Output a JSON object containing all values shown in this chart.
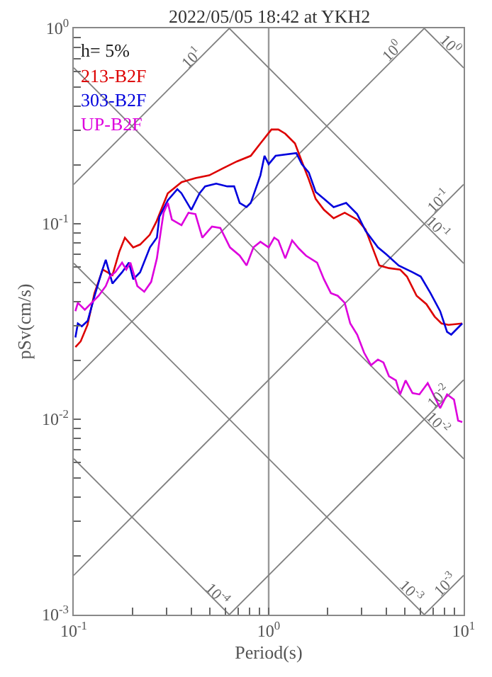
{
  "chart_data": {
    "type": "line",
    "title": "2022/05/05 18:42 at YKH2",
    "xlabel": "Period(s)",
    "ylabel": "pSv(cm/s)",
    "log": "xy",
    "grid": true,
    "legend": "top left",
    "marker": "none",
    "line_style": "solid",
    "xlim": [
      0.1,
      10
    ],
    "ylim": [
      0.001,
      1
    ],
    "xticks": [
      {
        "value": 0.1,
        "label": "10$^{-1}$"
      },
      {
        "value": 0.2,
        "label": null
      },
      {
        "value": 0.3,
        "label": null
      },
      {
        "value": 0.4,
        "label": null
      },
      {
        "value": 0.5,
        "label": null
      },
      {
        "value": 0.6,
        "label": null
      },
      {
        "value": 0.7,
        "label": null
      },
      {
        "value": 0.8,
        "label": null
      },
      {
        "value": 0.9,
        "label": null
      },
      {
        "value": 1,
        "label": "10$^{0}$"
      },
      {
        "value": 2,
        "label": null
      },
      {
        "value": 3,
        "label": null
      },
      {
        "value": 4,
        "label": null
      },
      {
        "value": 5,
        "label": null
      },
      {
        "value": 6,
        "label": null
      },
      {
        "value": 7,
        "label": null
      },
      {
        "value": 8,
        "label": null
      },
      {
        "value": 9,
        "label": null
      },
      {
        "value": 10,
        "label": "10$^{1}$"
      }
    ],
    "yticks": [
      {
        "value": 0.001,
        "label": "10$^{-3}$"
      },
      {
        "value": 0.002,
        "label": null
      },
      {
        "value": 0.003,
        "label": null
      },
      {
        "value": 0.004,
        "label": null
      },
      {
        "value": 0.005,
        "label": null
      },
      {
        "value": 0.006,
        "label": null
      },
      {
        "value": 0.007,
        "label": null
      },
      {
        "value": 0.008,
        "label": null
      },
      {
        "value": 0.009,
        "label": null
      },
      {
        "value": 0.01,
        "label": "10$^{-2}$"
      },
      {
        "value": 0.02,
        "label": null
      },
      {
        "value": 0.03,
        "label": null
      },
      {
        "value": 0.04,
        "label": null
      },
      {
        "value": 0.05,
        "label": null
      },
      {
        "value": 0.06,
        "label": null
      },
      {
        "value": 0.07,
        "label": null
      },
      {
        "value": 0.08,
        "label": null
      },
      {
        "value": 0.09,
        "label": null
      },
      {
        "value": 0.1,
        "label": "10$^{-1}$"
      },
      {
        "value": 0.2,
        "label": null
      },
      {
        "value": 0.3,
        "label": null
      },
      {
        "value": 0.4,
        "label": null
      },
      {
        "value": 0.5,
        "label": null
      },
      {
        "value": 0.6,
        "label": null
      },
      {
        "value": 0.7,
        "label": null
      },
      {
        "value": 0.8,
        "label": null
      },
      {
        "value": 0.9,
        "label": null
      },
      {
        "value": 1,
        "label": "10$^{0}$"
      }
    ],
    "annotations": [
      "h= 5%",
      {
        "text": "10$^{1}$",
        "x": 0.4,
        "y": 0.637
      },
      {
        "text": "10$^{0}$",
        "x": 4.3,
        "y": 0.684
      },
      {
        "text": "10$^{0}$",
        "x": 8.6,
        "y": 0.731
      },
      {
        "text": "10$^{-1}$",
        "x": 7.4,
        "y": 0.1178
      },
      {
        "text": "10$^{-1}$",
        "x": 7.4,
        "y": 0.0849
      },
      {
        "text": "10$^{-2}$",
        "x": 7.4,
        "y": 0.01178
      },
      {
        "text": "10$^{-2}$",
        "x": 7.4,
        "y": 0.00849
      },
      {
        "text": "10$^{-4}$",
        "x": 0.55,
        "y": 0.001142
      },
      {
        "text": "10$^{-3}$",
        "x": 5.4,
        "y": 0.001164
      },
      {
        "text": "10$^{-3}$",
        "x": 8.0,
        "y": 0.001274
      }
    ],
    "series": [
      {
        "color": "#808080",
        "x": [
          0.1,
          0.628
        ],
        "values": [
          0.159,
          1
        ]
      },
      {
        "color": "#808080",
        "x": [
          0.1,
          6.28
        ],
        "values": [
          0.0159,
          1
        ]
      },
      {
        "color": "#808080",
        "x": [
          0.1,
          10
        ],
        "values": [
          0.00159,
          0.159
        ]
      },
      {
        "color": "#808080",
        "x": [
          0.628,
          10
        ],
        "values": [
          0.001,
          0.0159
        ]
      },
      {
        "color": "#808080",
        "x": [
          6.28,
          10
        ],
        "values": [
          0.001,
          0.00159
        ]
      },
      {
        "color": "#808080",
        "x": [
          6.28,
          10
        ],
        "values": [
          1,
          0.628
        ]
      },
      {
        "color": "#808080",
        "x": [
          0.628,
          10
        ],
        "values": [
          1,
          0.0628
        ]
      },
      {
        "color": "#808080",
        "x": [
          0.1,
          10
        ],
        "values": [
          0.628,
          0.00628
        ]
      },
      {
        "color": "#808080",
        "x": [
          0.1,
          6.28
        ],
        "values": [
          0.0628,
          0.001
        ]
      },
      {
        "color": "#808080",
        "x": [
          0.1,
          0.628
        ],
        "values": [
          0.00628,
          0.001
        ]
      },
      {
        "name": "213-B2F",
        "color": "#dd0000",
        "x": [
          0.102,
          0.1085,
          0.1177,
          0.1278,
          0.1409,
          0.158,
          0.1714,
          0.183,
          0.2018,
          0.219,
          0.2455,
          0.2665,
          0.3036,
          0.3574,
          0.4209,
          0.4955,
          0.583,
          0.687,
          0.809,
          0.907,
          1.033,
          1.121,
          1.216,
          1.364,
          1.479,
          1.606,
          1.742,
          1.921,
          2.154,
          2.455,
          2.844,
          3.137,
          3.404,
          3.693,
          4.141,
          4.72,
          5.12,
          5.74,
          6.44,
          7.1,
          7.7,
          8.36,
          9.84
        ],
        "values": [
          0.0234,
          0.025,
          0.0304,
          0.0442,
          0.0583,
          0.0546,
          0.0721,
          0.0849,
          0.0757,
          0.0783,
          0.0878,
          0.1033,
          0.1432,
          0.1632,
          0.1714,
          0.177,
          0.1922,
          0.2085,
          0.2226,
          0.2578,
          0.3036,
          0.3036,
          0.2891,
          0.2578,
          0.2085,
          0.1686,
          0.1341,
          0.1178,
          0.1068,
          0.1139,
          0.105,
          0.0937,
          0.0757,
          0.0612,
          0.0593,
          0.0583,
          0.0537,
          0.0428,
          0.0388,
          0.0335,
          0.0309,
          0.0304,
          0.0309
        ]
      },
      {
        "name": "303-B2F",
        "color": "#0000dd",
        "x": [
          0.102,
          0.105,
          0.11,
          0.118,
          0.128,
          0.139,
          0.146,
          0.158,
          0.177,
          0.192,
          0.202,
          0.219,
          0.246,
          0.267,
          0.275,
          0.304,
          0.34,
          0.357,
          0.401,
          0.442,
          0.472,
          0.538,
          0.613,
          0.665,
          0.71,
          0.77,
          0.809,
          0.907,
          0.952,
          1.0,
          1.085,
          1.386,
          1.479,
          1.606,
          1.742,
          1.921,
          2.154,
          2.496,
          2.844,
          3.137,
          3.634,
          4.007,
          4.642,
          5.466,
          6.026,
          6.758,
          7.577,
          8.222,
          8.636,
          9.84
        ],
        "values": [
          0.0262,
          0.0309,
          0.0299,
          0.0319,
          0.0428,
          0.0565,
          0.0654,
          0.0495,
          0.0565,
          0.0633,
          0.052,
          0.0565,
          0.0757,
          0.0849,
          0.1085,
          0.132,
          0.1504,
          0.1432,
          0.1178,
          0.1432,
          0.1554,
          0.1606,
          0.1554,
          0.1554,
          0.1278,
          0.1217,
          0.1278,
          0.177,
          0.2226,
          0.2018,
          0.2226,
          0.23,
          0.2018,
          0.183,
          0.1456,
          0.1341,
          0.1217,
          0.1278,
          0.1121,
          0.0922,
          0.0757,
          0.0698,
          0.0612,
          0.0565,
          0.0537,
          0.0442,
          0.0357,
          0.028,
          0.0271,
          0.0309
        ]
      },
      {
        "name": "UP-B2F",
        "color": "#dd00dd",
        "x": [
          0.102,
          0.105,
          0.114,
          0.1236,
          0.1342,
          0.146,
          0.1529,
          0.1633,
          0.177,
          0.186,
          0.1953,
          0.212,
          0.23,
          0.2495,
          0.267,
          0.2799,
          0.2891,
          0.304,
          0.3188,
          0.357,
          0.388,
          0.421,
          0.4567,
          0.5119,
          0.5648,
          0.633,
          0.71,
          0.77,
          0.8356,
          0.907,
          1.0,
          1.068,
          1.121,
          1.216,
          1.319,
          1.432,
          1.554,
          1.771,
          1.921,
          2.085,
          2.262,
          2.455,
          2.62,
          2.844,
          3.086,
          3.348,
          3.634,
          3.88,
          4.141,
          4.494,
          4.72,
          5.037,
          5.466,
          5.93,
          6.542,
          7.1,
          7.577,
          8.222,
          8.922,
          9.368,
          9.84
        ],
        "values": [
          0.0357,
          0.0394,
          0.0363,
          0.0394,
          0.0428,
          0.048,
          0.0537,
          0.0565,
          0.0633,
          0.0583,
          0.0633,
          0.048,
          0.0449,
          0.0504,
          0.0665,
          0.0922,
          0.1139,
          0.1278,
          0.105,
          0.0984,
          0.1139,
          0.1121,
          0.0849,
          0.0968,
          0.0952,
          0.0757,
          0.0687,
          0.0612,
          0.0757,
          0.0809,
          0.0757,
          0.0849,
          0.0822,
          0.0665,
          0.0822,
          0.0745,
          0.0687,
          0.0633,
          0.052,
          0.0442,
          0.0428,
          0.0394,
          0.0309,
          0.0271,
          0.0219,
          0.0189,
          0.0202,
          0.0195,
          0.0166,
          0.0158,
          0.0134,
          0.0158,
          0.0136,
          0.0134,
          0.0153,
          0.013,
          0.0114,
          0.0134,
          0.0126,
          0.00984,
          0.00968
        ]
      }
    ]
  }
}
